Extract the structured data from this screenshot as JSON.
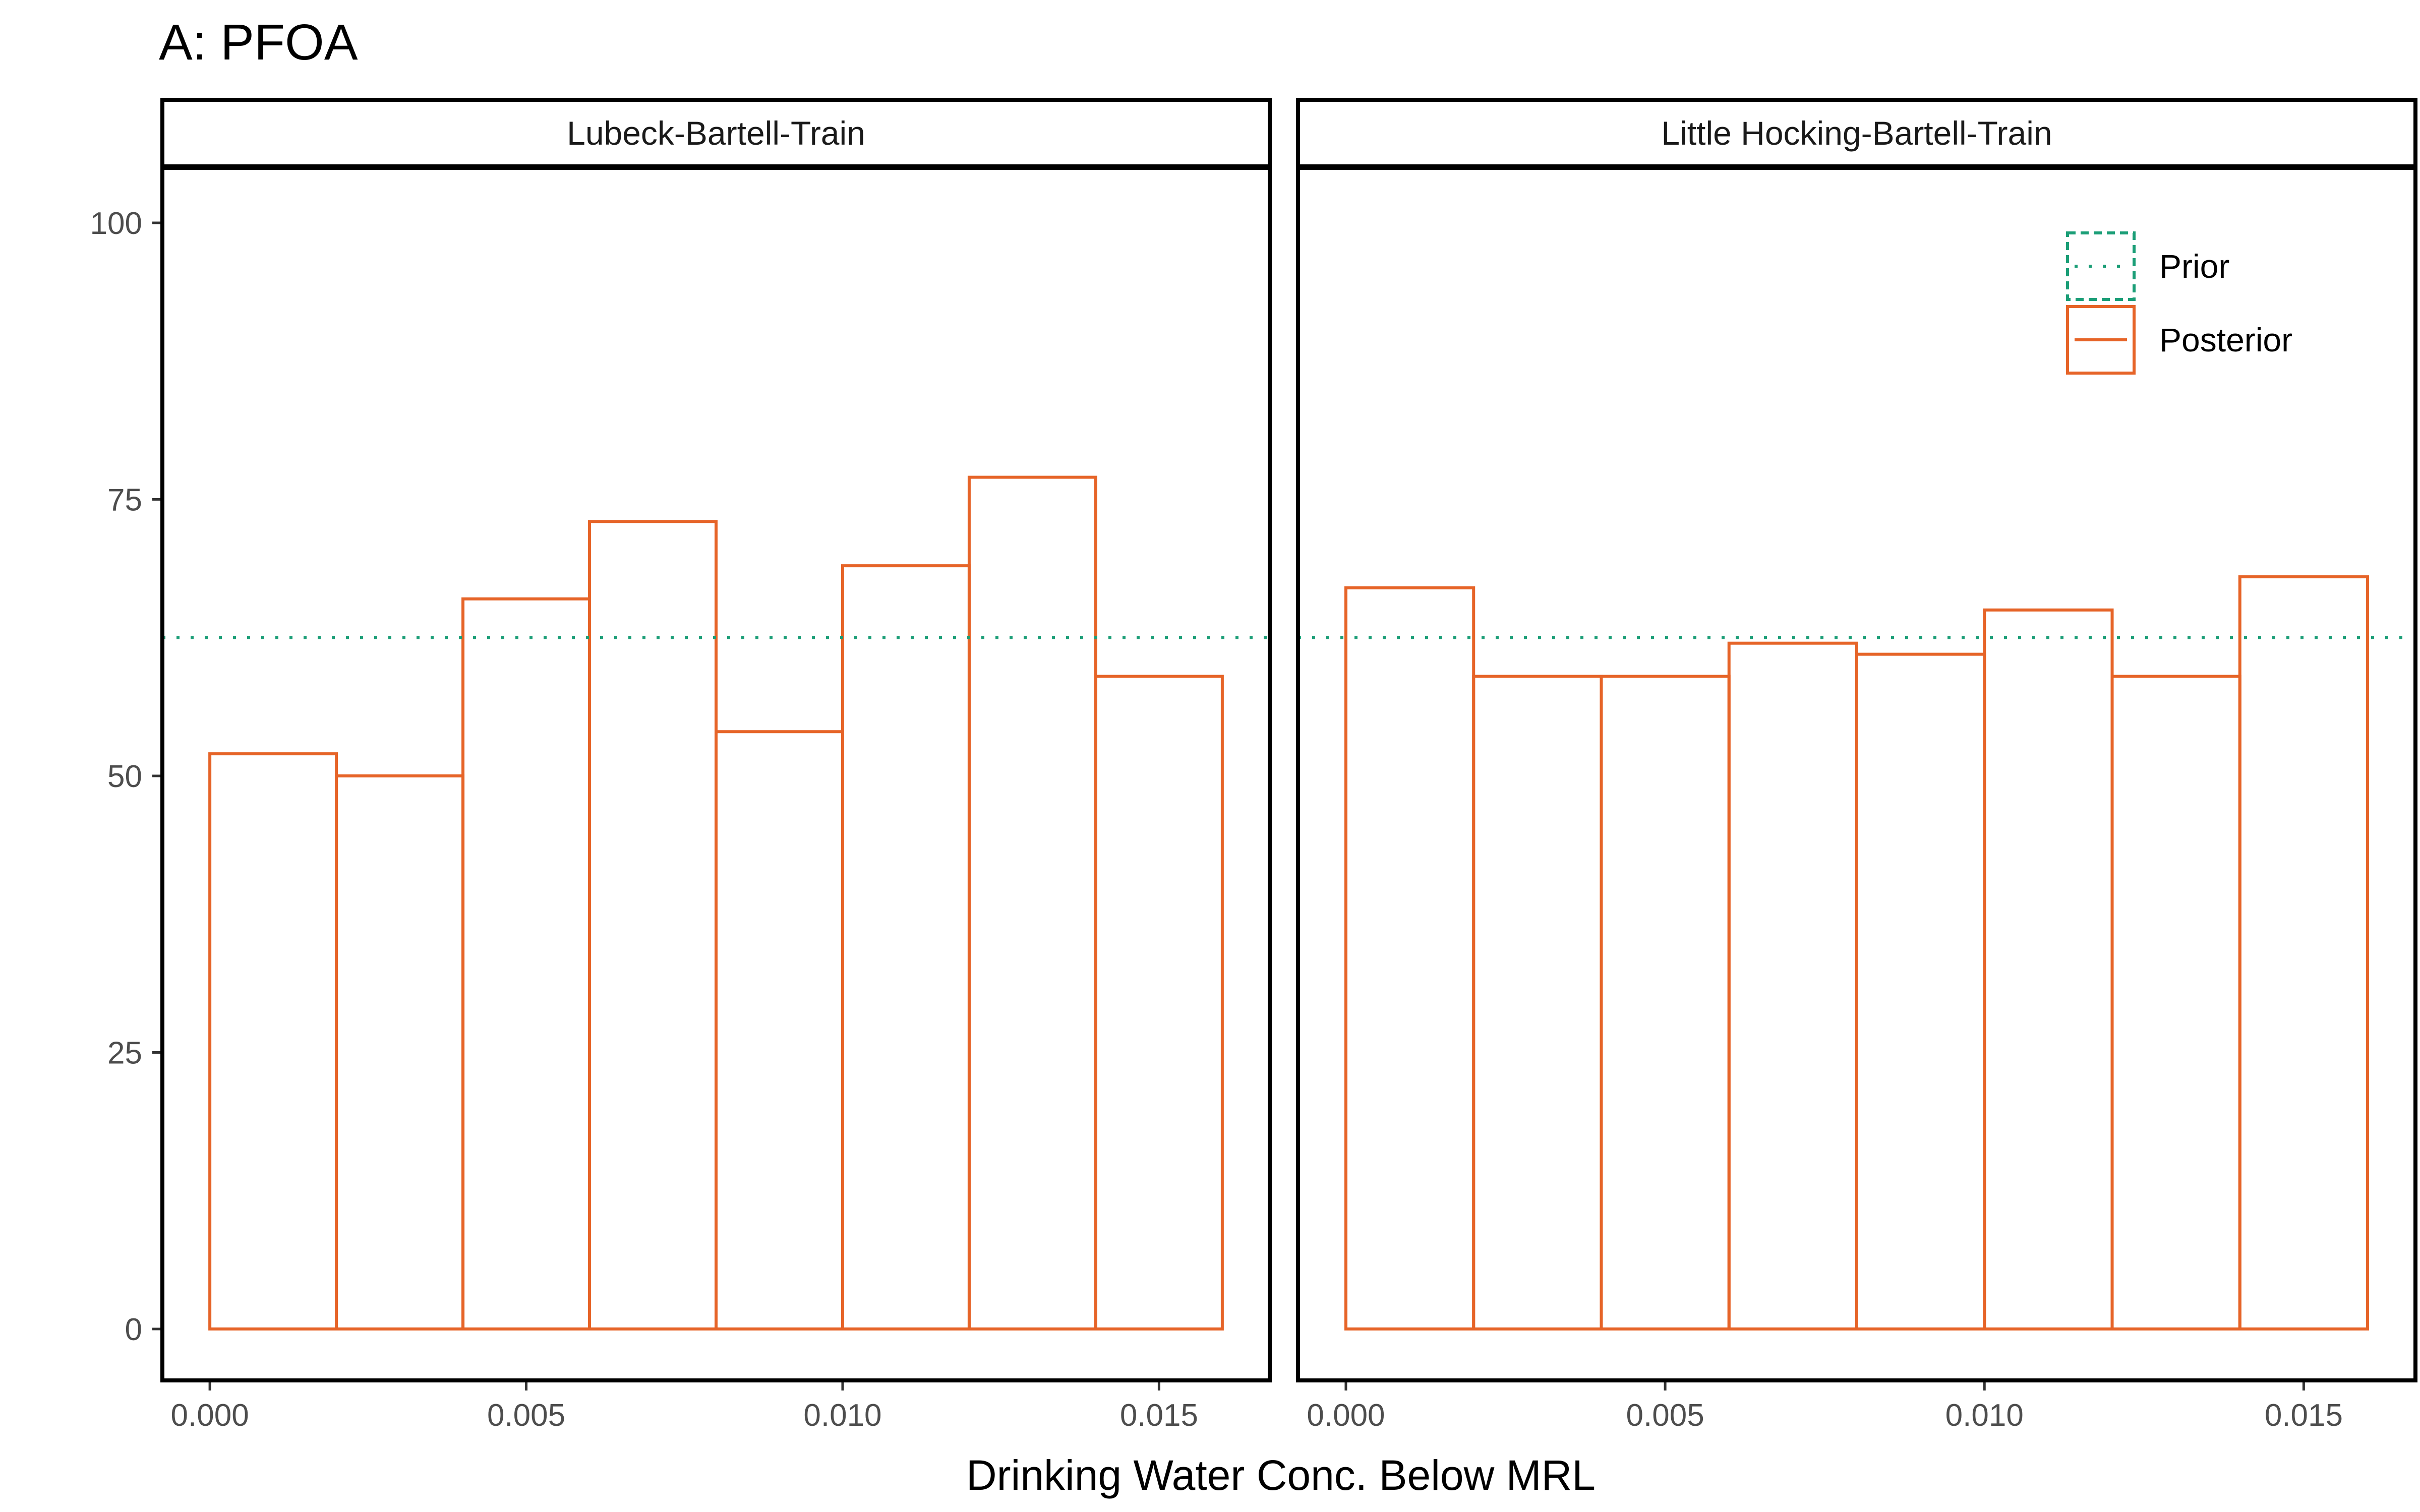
{
  "title": "A: PFOA",
  "chart_data": {
    "type": "histogram",
    "xlabel": "Drinking Water Conc. Below MRL",
    "ylabel": "",
    "xlim": [
      -0.00075,
      0.01675
    ],
    "ylim": [
      -4.9,
      105
    ],
    "x_ticks": [
      0.0,
      0.005,
      0.01,
      0.015
    ],
    "x_tick_labels": [
      "0.000",
      "0.005",
      "0.010",
      "0.015"
    ],
    "y_ticks": [
      0,
      25,
      50,
      75,
      100
    ],
    "y_tick_labels": [
      "0",
      "25",
      "50",
      "75",
      "100"
    ],
    "bin_edges": [
      0.0,
      0.002,
      0.004,
      0.006,
      0.008,
      0.01,
      0.012,
      0.014,
      0.016
    ],
    "prior_level": 62.5,
    "grid": false,
    "legend": {
      "position": "top-right",
      "items": [
        {
          "label": "Prior",
          "style": "dotted",
          "color": "#1b9e77"
        },
        {
          "label": "Posterior",
          "style": "solid",
          "color": "#e66428"
        }
      ]
    },
    "panels": [
      {
        "strip": "Lubeck-Bartell-Train",
        "posterior_counts": [
          52,
          50,
          66,
          73,
          54,
          69,
          77,
          59
        ]
      },
      {
        "strip": "Little Hocking-Bartell-Train",
        "posterior_counts": [
          67,
          59,
          59,
          62,
          61,
          65,
          59,
          68
        ]
      }
    ]
  }
}
